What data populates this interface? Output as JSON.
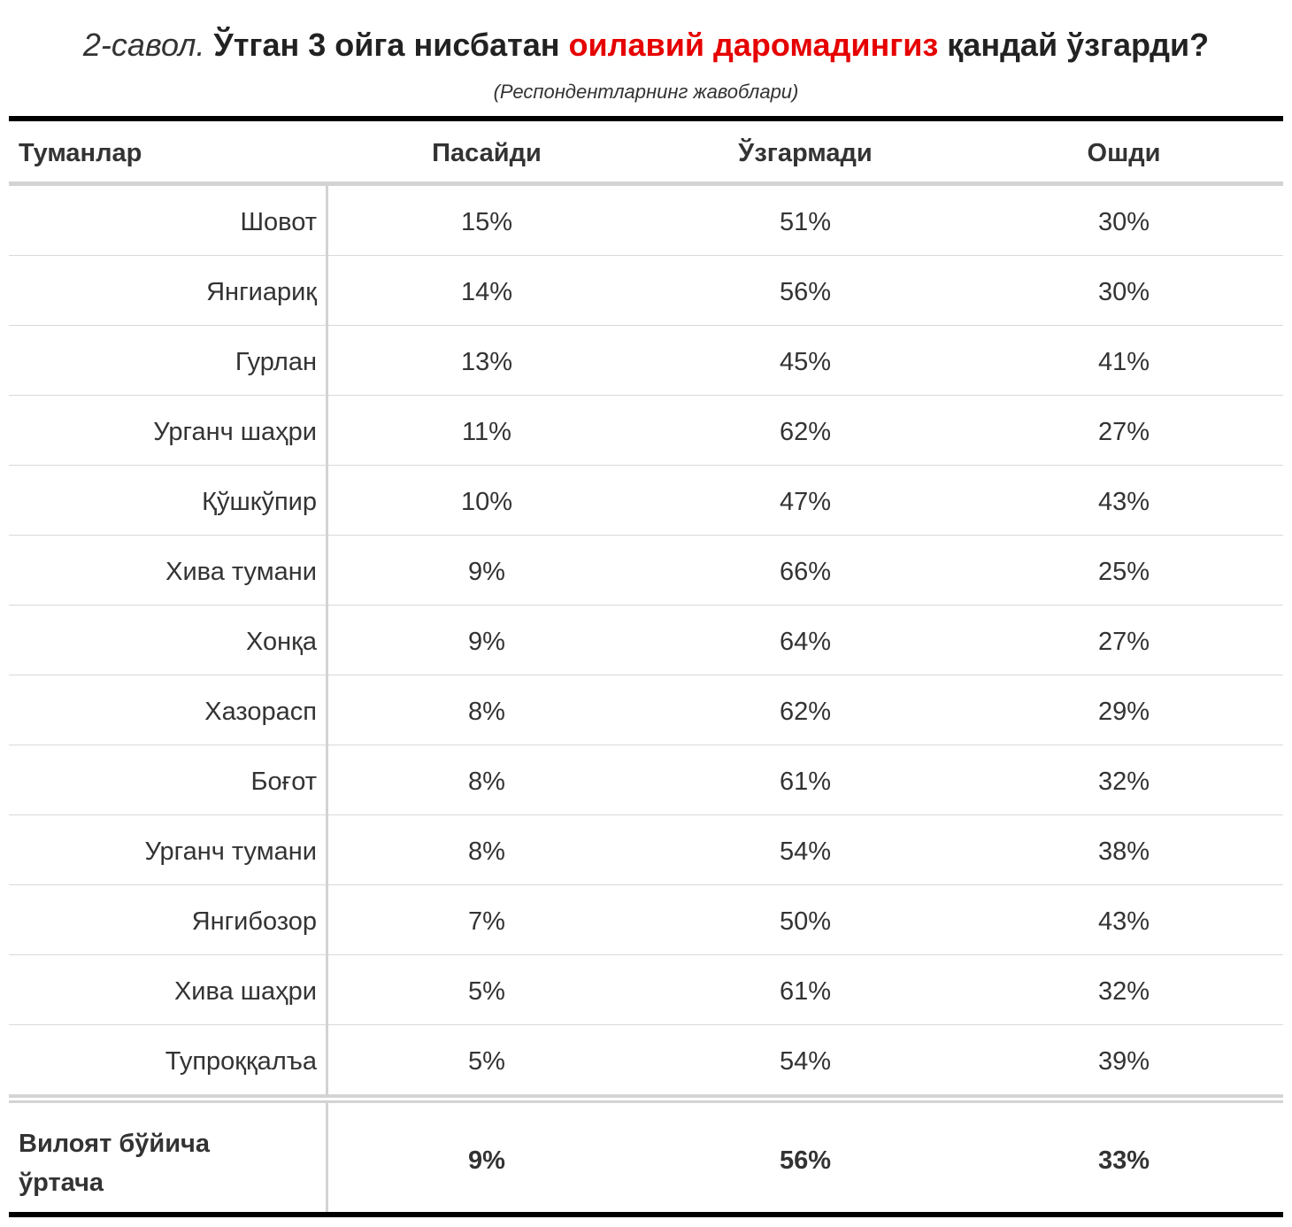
{
  "title": {
    "question_number": "2-савол.",
    "text_before": "Ўтган 3 ойга нисбатан",
    "highlight": "оилавий даромадингиз",
    "text_after": "қандай ўзгарди?",
    "highlight_color": "#e60000"
  },
  "subtitle": "(Респондентларнинг жавоблари)",
  "columns": {
    "district": "Туманлар",
    "decreased": "Пасайди",
    "unchanged": "Ўзгармади",
    "increased": "Ошди"
  },
  "rows": [
    {
      "district": "Шовот",
      "decreased": "15%",
      "unchanged": "51%",
      "increased": "30%"
    },
    {
      "district": "Янгиариқ",
      "decreased": "14%",
      "unchanged": "56%",
      "increased": "30%"
    },
    {
      "district": "Гурлан",
      "decreased": "13%",
      "unchanged": "45%",
      "increased": "41%"
    },
    {
      "district": "Урганч шаҳри",
      "decreased": "11%",
      "unchanged": "62%",
      "increased": "27%"
    },
    {
      "district": "Қўшкўпир",
      "decreased": "10%",
      "unchanged": "47%",
      "increased": "43%"
    },
    {
      "district": "Хива тумани",
      "decreased": "9%",
      "unchanged": "66%",
      "increased": "25%"
    },
    {
      "district": "Хонқа",
      "decreased": "9%",
      "unchanged": "64%",
      "increased": "27%"
    },
    {
      "district": "Хазорасп",
      "decreased": "8%",
      "unchanged": "62%",
      "increased": "29%"
    },
    {
      "district": "Боғот",
      "decreased": "8%",
      "unchanged": "61%",
      "increased": "32%"
    },
    {
      "district": "Урганч тумани",
      "decreased": "8%",
      "unchanged": "54%",
      "increased": "38%"
    },
    {
      "district": "Янгибозор",
      "decreased": "7%",
      "unchanged": "50%",
      "increased": "43%"
    },
    {
      "district": "Хива шаҳри",
      "decreased": "5%",
      "unchanged": "61%",
      "increased": "32%"
    },
    {
      "district": "Тупроққалъа",
      "decreased": "5%",
      "unchanged": "54%",
      "increased": "39%"
    }
  ],
  "total": {
    "label_line1": "Вилоят бўйича",
    "label_line2": "ўртача",
    "decreased": "9%",
    "unchanged": "56%",
    "increased": "33%"
  }
}
